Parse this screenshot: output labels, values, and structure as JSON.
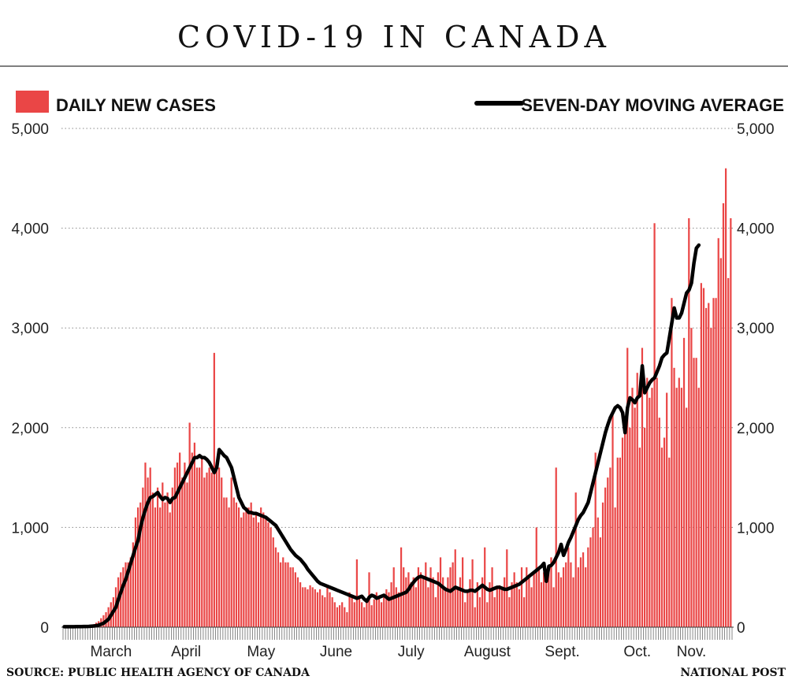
{
  "title": "COVID-19 IN CANADA",
  "source": "SOURCE: PUBLIC HEALTH AGENCY OF CANADA",
  "publisher": "NATIONAL POST",
  "legend": {
    "bars": "DAILY NEW CASES",
    "line": "SEVEN-DAY MOVING AVERAGE"
  },
  "colors": {
    "bars": "#ea4646",
    "line": "#000000",
    "grid": "#888888"
  },
  "chart_data": {
    "type": "bar",
    "title": "COVID-19 IN CANADA",
    "x_start": "2020-02-26",
    "x_end": "2020-11-13",
    "ylim": [
      0,
      5000
    ],
    "yticks": [
      "0",
      "1,000",
      "2,000",
      "3,000",
      "4,000",
      "5,000"
    ],
    "yticks_right": [
      "0",
      "1,000",
      "2,000",
      "3,000",
      "4,000",
      "5,000"
    ],
    "month_labels": [
      "March",
      "April",
      "May",
      "June",
      "July",
      "August",
      "Sept.",
      "Oct.",
      "Nov."
    ],
    "grid": "horizontal dotted",
    "legend_placement": "top",
    "series": [
      {
        "name": "DAILY NEW CASES",
        "kind": "bar",
        "values": [
          5,
          6,
          6,
          6,
          7,
          8,
          8,
          9,
          10,
          12,
          15,
          20,
          30,
          45,
          60,
          90,
          120,
          150,
          200,
          250,
          300,
          400,
          500,
          550,
          600,
          650,
          650,
          700,
          850,
          1100,
          1200,
          1250,
          1400,
          1650,
          1500,
          1600,
          1350,
          1200,
          1400,
          1200,
          1450,
          1250,
          1350,
          1150,
          1400,
          1600,
          1650,
          1750,
          1500,
          1650,
          1450,
          2050,
          1750,
          1850,
          1600,
          1600,
          1700,
          1500,
          1550,
          1600,
          1550,
          2750,
          1650,
          1600,
          1500,
          1300,
          1300,
          1200,
          1500,
          1300,
          1250,
          1200,
          1100,
          1150,
          1200,
          1200,
          1250,
          1100,
          1150,
          1050,
          1200,
          1150,
          1100,
          1050,
          1000,
          900,
          800,
          750,
          650,
          700,
          650,
          650,
          600,
          600,
          550,
          500,
          450,
          400,
          400,
          380,
          420,
          400,
          380,
          350,
          380,
          320,
          300,
          400,
          350,
          300,
          250,
          200,
          220,
          250,
          200,
          150,
          350,
          300,
          250,
          680,
          300,
          250,
          200,
          250,
          550,
          220,
          280,
          350,
          300,
          250,
          300,
          380,
          350,
          450,
          600,
          400,
          350,
          800,
          600,
          500,
          550,
          450,
          500,
          400,
          600,
          550,
          500,
          650,
          400,
          600,
          500,
          300,
          550,
          700,
          500,
          400,
          500,
          600,
          650,
          780,
          400,
          500,
          700,
          250,
          350,
          480,
          680,
          200,
          450,
          300,
          500,
          800,
          250,
          450,
          600,
          300,
          400,
          420,
          380,
          500,
          780,
          300,
          450,
          550,
          450,
          380,
          600,
          300,
          600,
          500,
          400,
          550,
          1000,
          600,
          450,
          550,
          500,
          600,
          700,
          400,
          1600,
          550,
          500,
          600,
          650,
          800,
          650,
          500,
          1350,
          600,
          700,
          750,
          600,
          800,
          900,
          1000,
          1750,
          1100,
          900,
          1250,
          1400,
          1500,
          1600,
          2170,
          1200,
          1700,
          1700,
          1900,
          2100,
          2800,
          2000,
          2400,
          2200,
          2550,
          1800,
          2800,
          2000,
          2500,
          2300,
          2400,
          4050,
          2500,
          2100,
          1800,
          1900,
          2350,
          1700,
          3300,
          2600,
          2400,
          2500,
          2400,
          2900,
          2200,
          4100,
          3000,
          2700,
          2700,
          2400,
          3450,
          3400,
          3200,
          3250,
          3000,
          3300,
          3300,
          3900,
          3700,
          4250,
          4600,
          3500,
          4100
        ]
      },
      {
        "name": "SEVEN-DAY MOVING AVERAGE",
        "kind": "line",
        "values": [
          5,
          5,
          5,
          5,
          5,
          6,
          6,
          6,
          7,
          7,
          8,
          10,
          12,
          15,
          20,
          30,
          40,
          60,
          80,
          120,
          160,
          200,
          280,
          350,
          420,
          480,
          560,
          640,
          720,
          800,
          870,
          1000,
          1100,
          1180,
          1250,
          1300,
          1310,
          1330,
          1350,
          1310,
          1280,
          1300,
          1290,
          1250,
          1290,
          1300,
          1350,
          1400,
          1450,
          1500,
          1550,
          1600,
          1650,
          1700,
          1700,
          1720,
          1700,
          1700,
          1680,
          1650,
          1600,
          1550,
          1600,
          1780,
          1750,
          1720,
          1700,
          1650,
          1600,
          1500,
          1400,
          1300,
          1250,
          1200,
          1180,
          1150,
          1150,
          1140,
          1140,
          1130,
          1120,
          1110,
          1100,
          1080,
          1060,
          1040,
          1020,
          980,
          940,
          900,
          860,
          820,
          780,
          750,
          720,
          700,
          680,
          650,
          620,
          580,
          550,
          520,
          490,
          460,
          440,
          430,
          420,
          410,
          400,
          390,
          380,
          370,
          360,
          350,
          340,
          330,
          320,
          310,
          300,
          290,
          300,
          310,
          280,
          260,
          300,
          320,
          310,
          290,
          300,
          310,
          320,
          300,
          280,
          290,
          300,
          310,
          320,
          330,
          340,
          350,
          380,
          420,
          450,
          480,
          500,
          510,
          500,
          490,
          480,
          470,
          460,
          450,
          440,
          420,
          400,
          380,
          370,
          360,
          380,
          400,
          390,
          380,
          370,
          360,
          360,
          370,
          370,
          360,
          380,
          400,
          420,
          400,
          380,
          370,
          380,
          390,
          400,
          400,
          390,
          380,
          380,
          390,
          400,
          410,
          420,
          430,
          450,
          470,
          490,
          510,
          530,
          550,
          570,
          590,
          610,
          640,
          460,
          610,
          620,
          650,
          700,
          750,
          830,
          720,
          780,
          850,
          900,
          960,
          1020,
          1080,
          1120,
          1150,
          1200,
          1250,
          1350,
          1450,
          1550,
          1650,
          1750,
          1850,
          1950,
          2030,
          2100,
          2150,
          2200,
          2220,
          2200,
          2150,
          1950,
          2200,
          2300,
          2280,
          2250,
          2300,
          2320,
          2620,
          2350,
          2400,
          2450,
          2480,
          2500,
          2560,
          2620,
          2700,
          2730,
          2750,
          2900,
          3050,
          3200,
          3100,
          3100,
          3150,
          3250,
          3350,
          3380,
          3450,
          3650,
          3800,
          3830
        ]
      }
    ]
  }
}
